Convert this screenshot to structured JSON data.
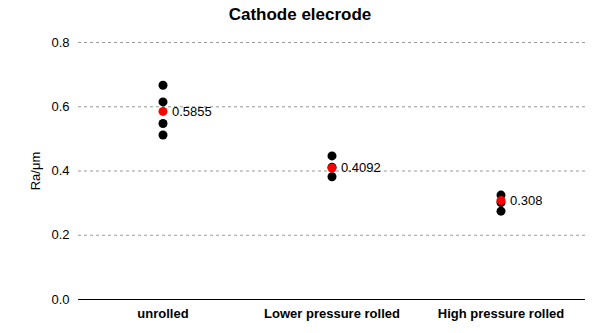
{
  "chart_data": {
    "type": "scatter",
    "title": "Cathode elecrode",
    "y_label": "Ra/μm",
    "categories": [
      "unrolled",
      "Lower pressure rolled",
      "High pressure rolled"
    ],
    "series": [
      {
        "color": "#000000",
        "marker": "circle",
        "values": [
          [
            0.667,
            0.615,
            0.548,
            0.512
          ],
          [
            0.447,
            0.412,
            0.382
          ],
          [
            0.325,
            0.302,
            0.275
          ]
        ]
      },
      {
        "color": "#ff0000",
        "marker": "circle",
        "data_labels": true,
        "values": [
          0.5855,
          0.4092,
          0.308
        ]
      }
    ],
    "ylim": [
      0,
      0.8
    ],
    "yticks": [
      0,
      0.2,
      0.4,
      0.6,
      0.8
    ],
    "grid": true
  }
}
